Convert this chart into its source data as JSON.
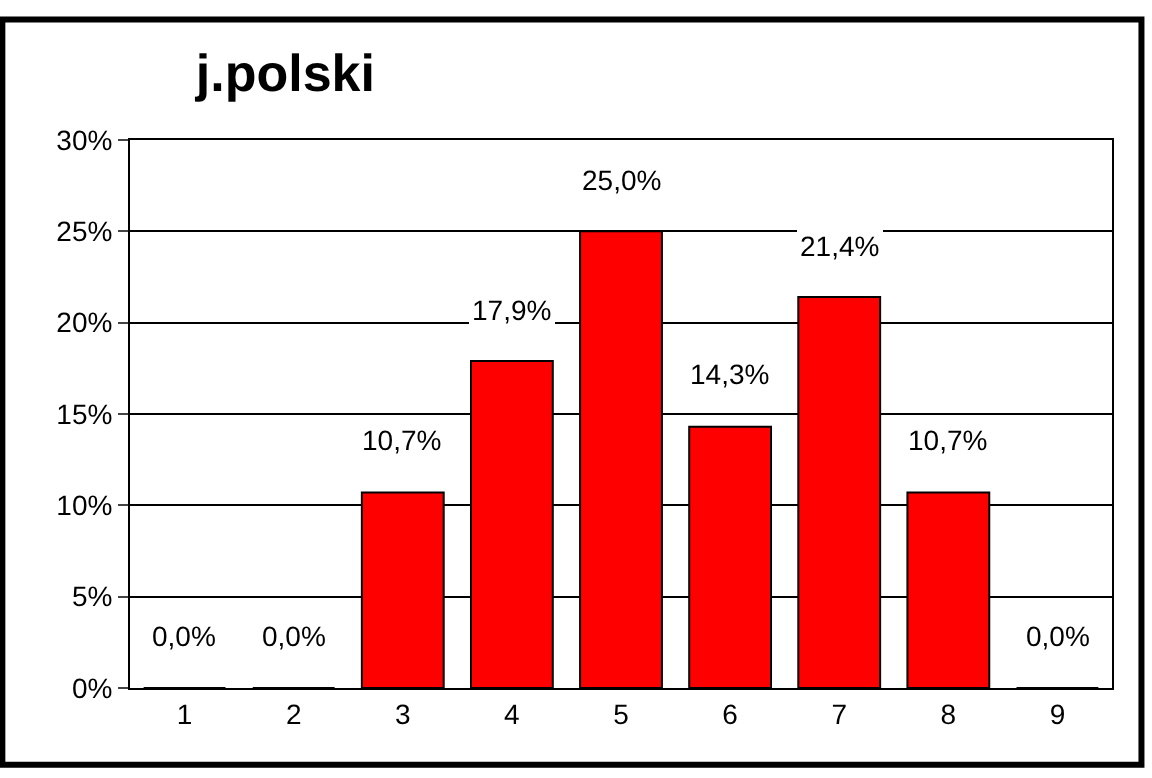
{
  "chart_data": {
    "type": "bar",
    "title": "j.polski",
    "categories": [
      "1",
      "2",
      "3",
      "4",
      "5",
      "6",
      "7",
      "8",
      "9"
    ],
    "values": [
      0.0,
      0.0,
      10.7,
      17.9,
      25.0,
      14.3,
      21.4,
      10.7,
      0.0
    ],
    "value_labels": [
      "0,0%",
      "0,0%",
      "10,7%",
      "17,9%",
      "25,0%",
      "14,3%",
      "21,4%",
      "10,7%",
      "0,0%"
    ],
    "color": "#ff0000",
    "ylim": [
      0,
      30
    ],
    "yticks": [
      {
        "value": 0,
        "label": "0%"
      },
      {
        "value": 5,
        "label": "5%"
      },
      {
        "value": 10,
        "label": "10%"
      },
      {
        "value": 15,
        "label": "15%"
      },
      {
        "value": 20,
        "label": "20%"
      },
      {
        "value": 25,
        "label": "25%"
      },
      {
        "value": 30,
        "label": "30%"
      }
    ],
    "grid": "y",
    "legend": false
  }
}
